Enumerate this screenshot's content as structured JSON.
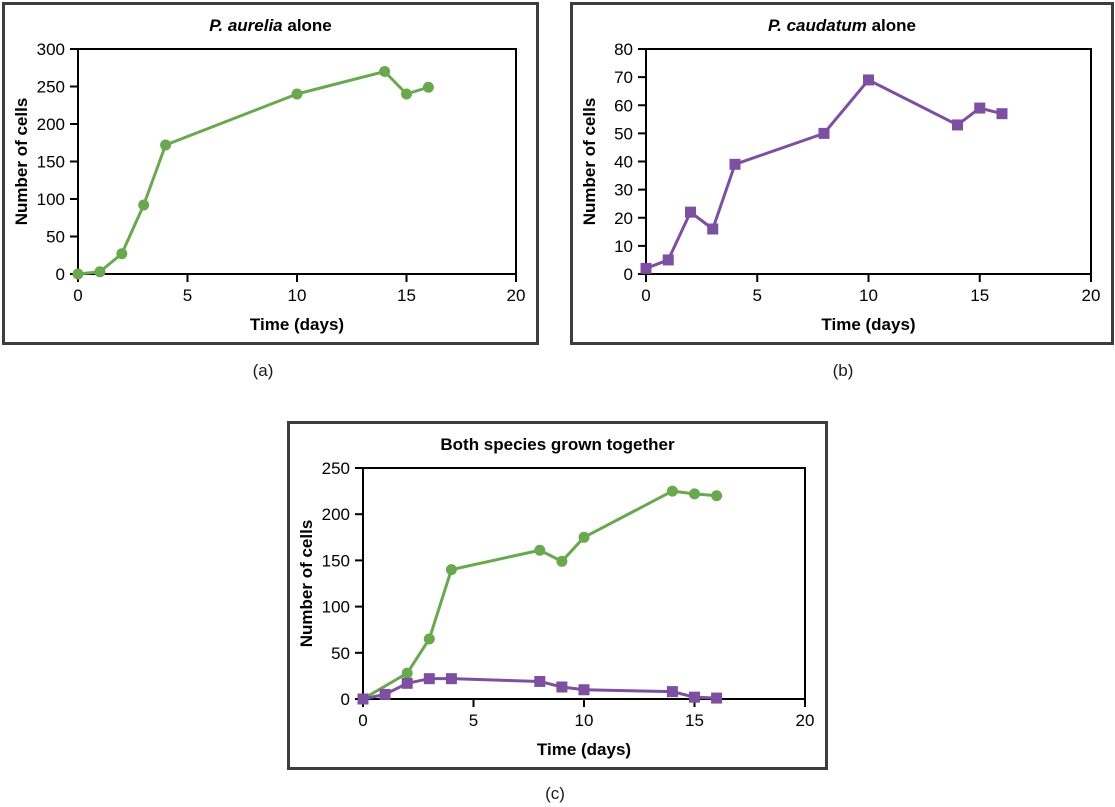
{
  "colors": {
    "aurelia_green": "#6aa84f",
    "caudatum_purple": "#7d4fa0",
    "panel_border": "#3d3d3d",
    "axis_black": "#000000"
  },
  "panel_labels": {
    "a": "(a)",
    "b": "(b)",
    "c": "(c)"
  },
  "chart_data": [
    {
      "type": "line",
      "title_parts": [
        {
          "text": "P. aurelia",
          "italic": true
        },
        {
          "text": " alone",
          "italic": false
        }
      ],
      "xlabel": "Time (days)",
      "ylabel": "Number of cells",
      "xlim": [
        0,
        20
      ],
      "ylim": [
        0,
        300
      ],
      "xticks": [
        0,
        5,
        10,
        15,
        20
      ],
      "yticks": [
        0,
        50,
        100,
        150,
        200,
        250,
        300
      ],
      "grid": false,
      "legend": "none",
      "series": [
        {
          "name": "P. aurelia",
          "color": "#6aa84f",
          "marker": "circle",
          "x": [
            0,
            1,
            2,
            3,
            4,
            10,
            14,
            15,
            16
          ],
          "y": [
            0,
            3,
            27,
            92,
            172,
            240,
            270,
            240,
            249
          ]
        }
      ]
    },
    {
      "type": "line",
      "title_parts": [
        {
          "text": "P. caudatum",
          "italic": true
        },
        {
          "text": " alone",
          "italic": false
        }
      ],
      "xlabel": "Time (days)",
      "ylabel": "Number of cells",
      "xlim": [
        0,
        20
      ],
      "ylim": [
        0,
        80
      ],
      "xticks": [
        0,
        5,
        10,
        15,
        20
      ],
      "yticks": [
        0,
        10,
        20,
        30,
        40,
        50,
        60,
        70,
        80
      ],
      "grid": false,
      "legend": "none",
      "series": [
        {
          "name": "P. caudatum",
          "color": "#7d4fa0",
          "marker": "square",
          "x": [
            0,
            1,
            2,
            3,
            4,
            8,
            10,
            14,
            15,
            16
          ],
          "y": [
            2,
            5,
            22,
            16,
            39,
            50,
            69,
            53,
            59,
            57
          ]
        }
      ]
    },
    {
      "type": "line",
      "title_parts": [
        {
          "text": "Both species grown together",
          "italic": false
        }
      ],
      "xlabel": "Time (days)",
      "ylabel": "Number of cells",
      "xlim": [
        0,
        20
      ],
      "ylim": [
        0,
        250
      ],
      "xticks": [
        0,
        5,
        10,
        15,
        20
      ],
      "yticks": [
        0,
        50,
        100,
        150,
        200,
        250
      ],
      "grid": false,
      "legend": "none",
      "series": [
        {
          "name": "P. aurelia",
          "color": "#6aa84f",
          "marker": "circle",
          "x": [
            0,
            2,
            3,
            4,
            8,
            9,
            10,
            14,
            15,
            16
          ],
          "y": [
            0,
            28,
            65,
            140,
            161,
            149,
            175,
            225,
            222,
            220
          ]
        },
        {
          "name": "P. caudatum",
          "color": "#7d4fa0",
          "marker": "square",
          "x": [
            0,
            1,
            2,
            3,
            4,
            8,
            9,
            10,
            14,
            15,
            16
          ],
          "y": [
            0,
            5,
            17,
            22,
            22,
            19,
            13,
            10,
            8,
            2,
            1
          ]
        }
      ]
    }
  ]
}
